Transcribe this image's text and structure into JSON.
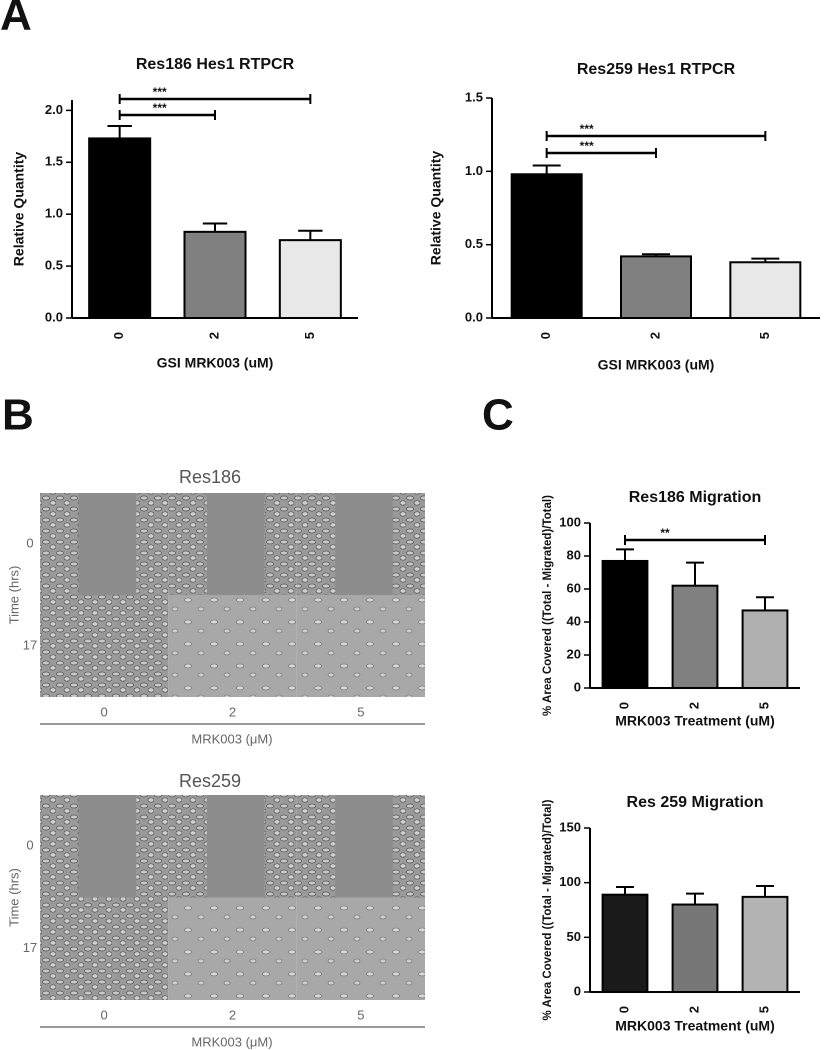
{
  "panel_labels": [
    "A",
    "B",
    "C"
  ],
  "images": [
    {
      "title": "Res186",
      "y_label": "Time (hrs)",
      "rows": [
        "0",
        "17"
      ],
      "columns": [
        "0",
        "2",
        "5"
      ],
      "x_label": "MRK003 (μM)"
    },
    {
      "title": "Res259",
      "y_label": "Time (hrs)",
      "rows": [
        "0",
        "17"
      ],
      "columns": [
        "0",
        "2",
        "5"
      ],
      "x_label": "MRK003 (μM)"
    }
  ],
  "chart_data": [
    {
      "type": "bar",
      "title": "Res186 Hes1 RTPCR",
      "x_label": "GSI MRK003 (uM)",
      "y_label": "Relative Quantity",
      "categories": [
        "0",
        "2",
        "5"
      ],
      "values": [
        1.73,
        0.83,
        0.75
      ],
      "errors": [
        0.12,
        0.08,
        0.09
      ],
      "colors": [
        "#000000",
        "#808080",
        "#e8e8e8"
      ],
      "ylim": [
        0,
        2.1
      ],
      "yticks": [
        {
          "value": 0,
          "label": "0.0"
        },
        0.5,
        {
          "value": 1,
          "label": "1.0"
        },
        1.5,
        {
          "value": 2,
          "label": "2.0"
        }
      ],
      "annotations": [
        "***",
        "***"
      ]
    },
    {
      "type": "bar",
      "title": "Res259 Hes1 RTPCR",
      "x_label": "GSI MRK003 (uM)",
      "y_label": "Relative Quantity",
      "categories": [
        "0",
        "2",
        "5"
      ],
      "values": [
        0.98,
        0.42,
        0.38
      ],
      "errors": [
        0.06,
        0.015,
        0.025
      ],
      "colors": [
        "#000000",
        "#808080",
        "#e8e8e8"
      ],
      "ylim": [
        0,
        1.5
      ],
      "yticks": [
        {
          "value": 0,
          "label": "0.0"
        },
        0.5,
        {
          "value": 1,
          "label": "1.0"
        },
        1.5
      ],
      "annotations": [
        "***",
        "***"
      ]
    },
    {
      "type": "bar",
      "title": "Res186 Migration",
      "x_label": "MRK003 Treatment (uM)",
      "y_label": "% Area Covered ((Total - Migrated)/Total)",
      "categories": [
        "0",
        "2",
        "5"
      ],
      "values": [
        77,
        62,
        47
      ],
      "errors": [
        7,
        14,
        8
      ],
      "colors": [
        "#000000",
        "#808080",
        "#b0b0b0"
      ],
      "ylim": [
        0,
        100
      ],
      "yticks": [
        0,
        20,
        40,
        60,
        80,
        100
      ],
      "annotations": [
        "**"
      ]
    },
    {
      "type": "bar",
      "title": "Res 259 Migration",
      "x_label": "MRK003 Treatment (uM)",
      "y_label": "% Area Covered ((Total - Migrated)/Total)",
      "categories": [
        "0",
        "2",
        "5"
      ],
      "values": [
        89,
        80,
        87
      ],
      "errors": [
        7,
        10,
        10
      ],
      "colors": [
        "#1a1a1a",
        "#777777",
        "#b3b3b3"
      ],
      "ylim": [
        0,
        150
      ],
      "yticks": [
        0,
        50,
        100,
        150
      ]
    }
  ]
}
